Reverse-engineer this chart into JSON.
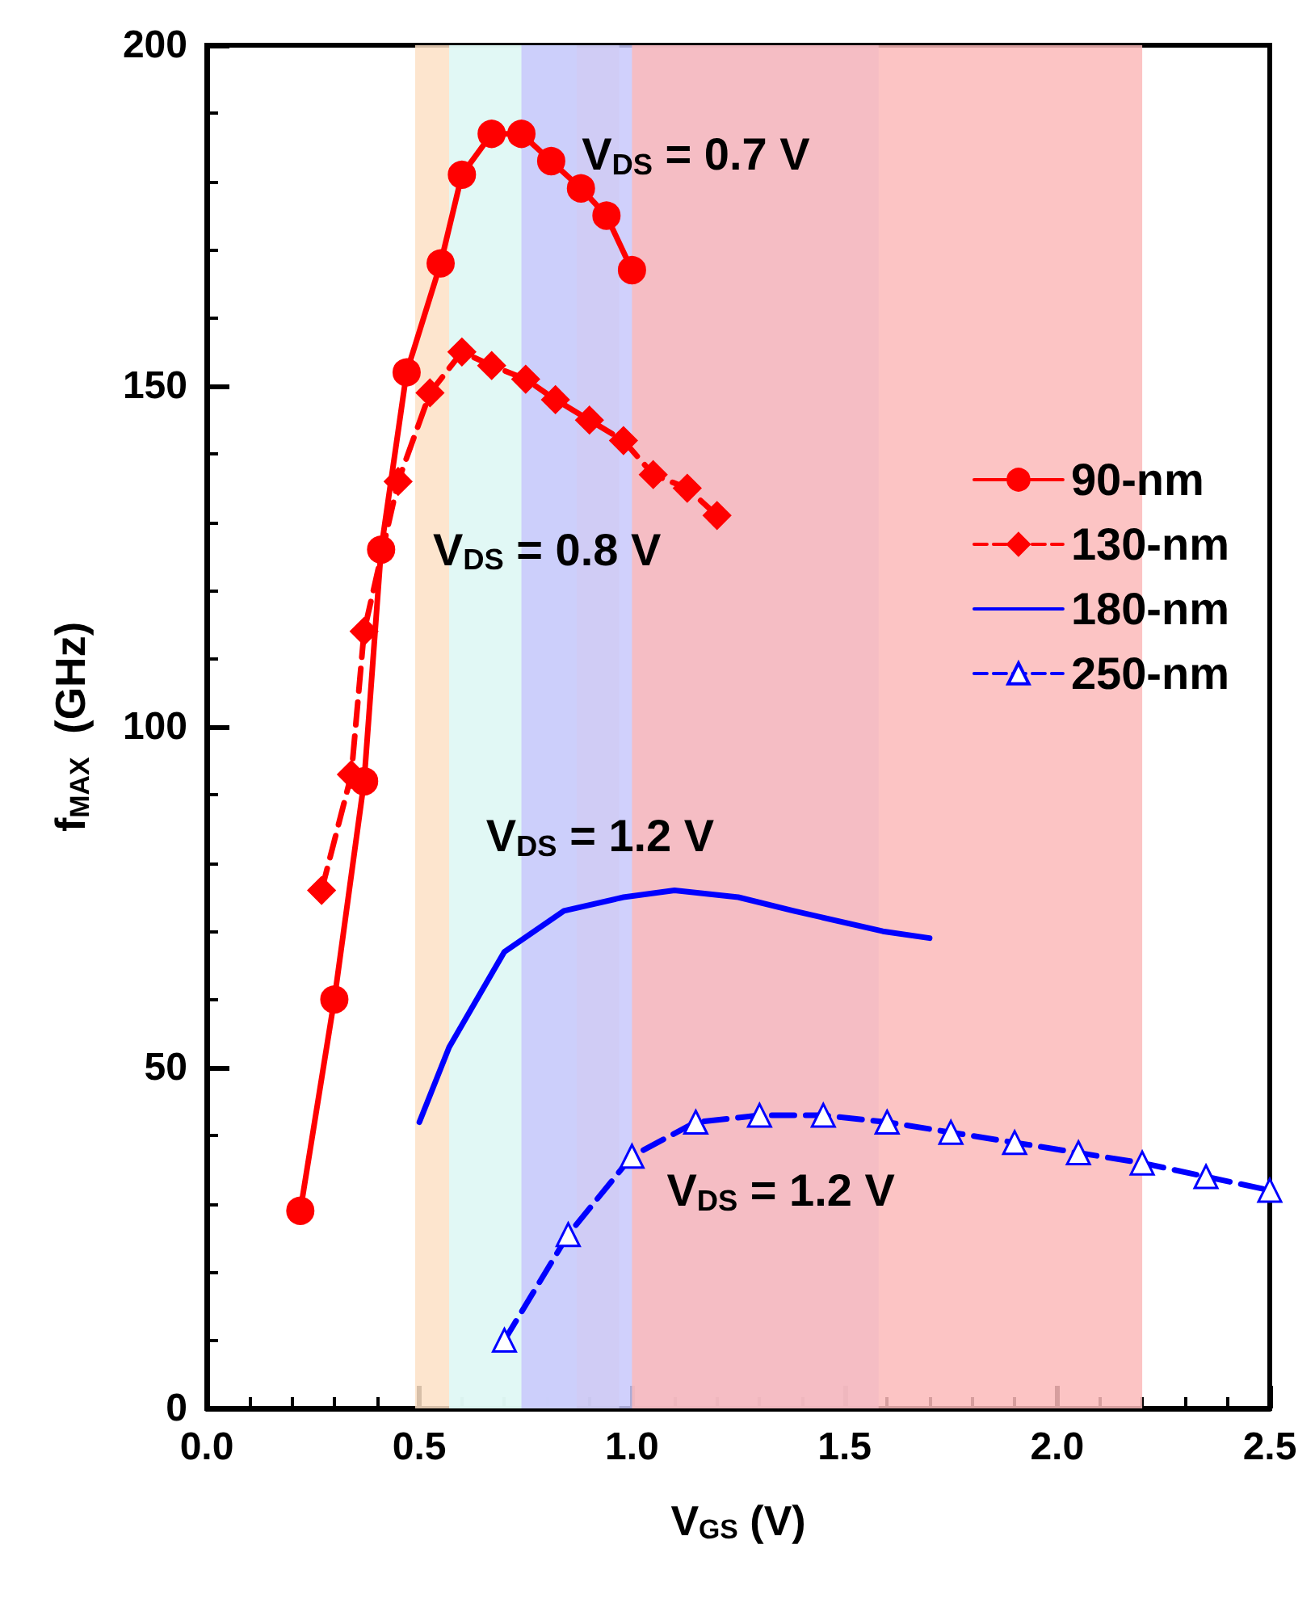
{
  "chart_data": {
    "type": "line",
    "xlabel": "V$_{GS}$ (V)",
    "ylabel": "f$_{MAX}$  (GHz)",
    "xlim": [
      0,
      2.5
    ],
    "xticks": [
      {
        "value": 0,
        "label": "0.0"
      },
      0.5,
      {
        "value": 1,
        "label": "1.0"
      },
      1.5,
      {
        "value": 2,
        "label": "2.0"
      },
      2.5
    ],
    "ylim": [
      0,
      200
    ],
    "yticks": [
      0,
      50,
      100,
      150,
      200
    ],
    "grid": false,
    "legend": "right",
    "series": [
      {
        "name": "90-nm",
        "color": "#ff0000",
        "marker": "circle",
        "line_style": "solid",
        "x": [
          0.22,
          0.3,
          0.37,
          0.41,
          0.47,
          0.55,
          0.6,
          0.67,
          0.74,
          0.81,
          0.88,
          0.94,
          1.0
        ],
        "values": [
          29,
          60,
          92,
          126,
          152,
          168,
          181,
          187,
          187,
          183,
          179,
          175,
          167
        ]
      },
      {
        "name": "130-nm",
        "color": "#ff0000",
        "marker": "diamond",
        "line_style": "dashed",
        "x": [
          0.27,
          0.34,
          0.37,
          0.45,
          0.525,
          0.6,
          0.67,
          0.75,
          0.82,
          0.9,
          0.98,
          1.05,
          1.13,
          1.2
        ],
        "values": [
          76,
          93,
          114,
          136,
          149,
          155,
          153,
          151,
          148,
          145,
          142,
          137,
          135,
          131
        ]
      },
      {
        "name": "180-nm",
        "color": "#0000ff",
        "marker": "none",
        "line_style": "solid",
        "x": [
          0.5,
          0.57,
          0.7,
          0.84,
          0.98,
          1.1,
          1.25,
          1.38,
          1.59,
          1.7
        ],
        "values": [
          42,
          53,
          67,
          73,
          75,
          76,
          75,
          73,
          70,
          69
        ]
      },
      {
        "name": "250-nm",
        "color": "#0000ff",
        "marker": "triangle",
        "line_style": "dashed",
        "x": [
          0.7,
          0.85,
          1.0,
          1.15,
          1.3,
          1.45,
          1.6,
          1.75,
          1.9,
          2.05,
          2.2,
          2.35,
          2.5
        ],
        "values": [
          10,
          25.5,
          37,
          42,
          43,
          43,
          42,
          40.5,
          39,
          37.5,
          36,
          34,
          32
        ]
      }
    ],
    "bands": [
      {
        "axis": "x",
        "from": 0.49,
        "to": 0.97,
        "color": "#fde0c5"
      },
      {
        "axis": "x",
        "from": 0.57,
        "to": 0.87,
        "color": "#dcfbfb"
      },
      {
        "axis": "x",
        "from": 0.74,
        "to": 1.58,
        "color": "#c8c8fb"
      },
      {
        "axis": "x",
        "from": 1.0,
        "to": 2.2,
        "color": "#fbbaba"
      }
    ],
    "annotations": [
      "V$_{DS}$ = 0.7 V",
      "V$_{DS}$ = 0.8 V",
      "V$_{DS}$ = 1.2 V",
      "V$_{DS}$ = 1.2 V"
    ]
  }
}
